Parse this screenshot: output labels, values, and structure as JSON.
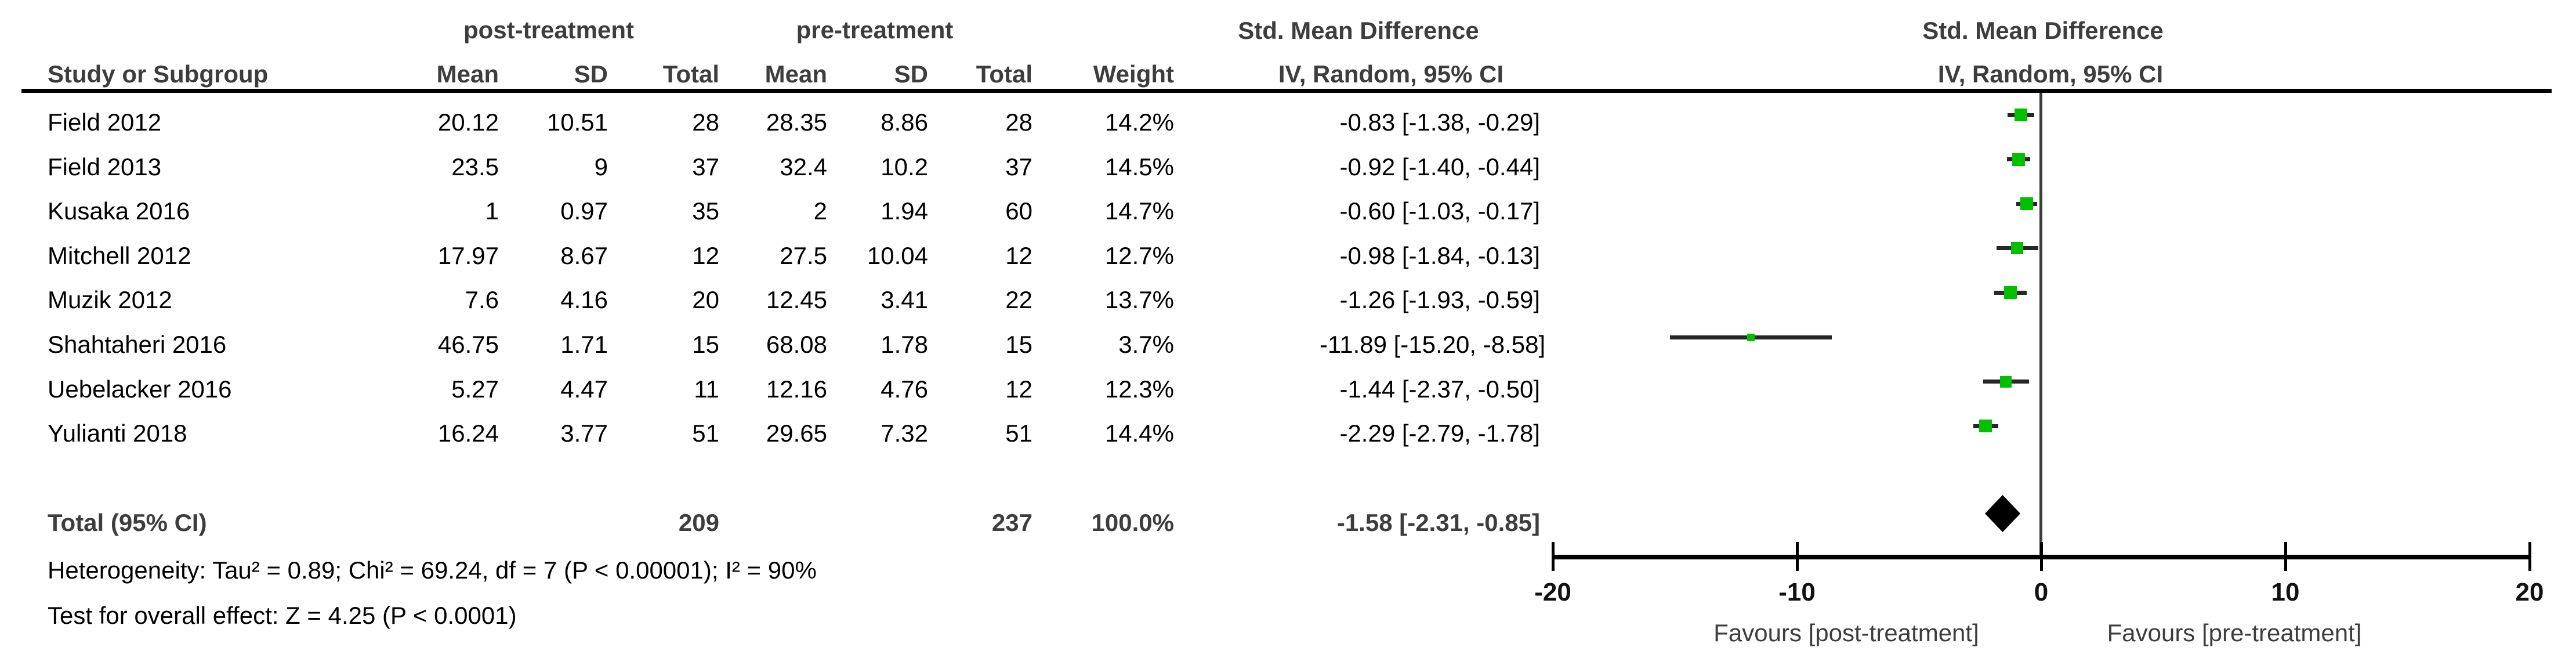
{
  "header": {
    "post": "post-treatment",
    "pre": "pre-treatment",
    "smd": "Std. Mean Difference",
    "iv": "IV, Random, 95% CI"
  },
  "columns": {
    "study": "Study or Subgroup",
    "mean": "Mean",
    "sd": "SD",
    "total": "Total",
    "weight": "Weight"
  },
  "studies": [
    {
      "name": "Field 2012",
      "post": {
        "mean": "20.12",
        "sd": "10.51",
        "total": "28"
      },
      "pre": {
        "mean": "28.35",
        "sd": "8.86",
        "total": "28"
      },
      "weight": "14.2%",
      "weight_pct": 14.2,
      "smd": -0.83,
      "ci_low": -1.38,
      "ci_high": -0.29,
      "ci_text": "-0.83 [-1.38, -0.29]"
    },
    {
      "name": "Field 2013",
      "post": {
        "mean": "23.5",
        "sd": "9",
        "total": "37"
      },
      "pre": {
        "mean": "32.4",
        "sd": "10.2",
        "total": "37"
      },
      "weight": "14.5%",
      "weight_pct": 14.5,
      "smd": -0.92,
      "ci_low": -1.4,
      "ci_high": -0.44,
      "ci_text": "-0.92 [-1.40, -0.44]"
    },
    {
      "name": "Kusaka 2016",
      "post": {
        "mean": "1",
        "sd": "0.97",
        "total": "35"
      },
      "pre": {
        "mean": "2",
        "sd": "1.94",
        "total": "60"
      },
      "weight": "14.7%",
      "weight_pct": 14.7,
      "smd": -0.6,
      "ci_low": -1.03,
      "ci_high": -0.17,
      "ci_text": "-0.60 [-1.03, -0.17]"
    },
    {
      "name": "Mitchell 2012",
      "post": {
        "mean": "17.97",
        "sd": "8.67",
        "total": "12"
      },
      "pre": {
        "mean": "27.5",
        "sd": "10.04",
        "total": "12"
      },
      "weight": "12.7%",
      "weight_pct": 12.7,
      "smd": -0.98,
      "ci_low": -1.84,
      "ci_high": -0.13,
      "ci_text": "-0.98 [-1.84, -0.13]"
    },
    {
      "name": "Muzik 2012",
      "post": {
        "mean": "7.6",
        "sd": "4.16",
        "total": "20"
      },
      "pre": {
        "mean": "12.45",
        "sd": "3.41",
        "total": "22"
      },
      "weight": "13.7%",
      "weight_pct": 13.7,
      "smd": -1.26,
      "ci_low": -1.93,
      "ci_high": -0.59,
      "ci_text": "-1.26 [-1.93, -0.59]"
    },
    {
      "name": "Shahtaheri 2016",
      "post": {
        "mean": "46.75",
        "sd": "1.71",
        "total": "15"
      },
      "pre": {
        "mean": "68.08",
        "sd": "1.78",
        "total": "15"
      },
      "weight": "3.7%",
      "weight_pct": 3.7,
      "smd": -11.89,
      "ci_low": -15.2,
      "ci_high": -8.58,
      "ci_text": "-11.89 [-15.20, -8.58]"
    },
    {
      "name": "Uebelacker 2016",
      "post": {
        "mean": "5.27",
        "sd": "4.47",
        "total": "11"
      },
      "pre": {
        "mean": "12.16",
        "sd": "4.76",
        "total": "12"
      },
      "weight": "12.3%",
      "weight_pct": 12.3,
      "smd": -1.44,
      "ci_low": -2.37,
      "ci_high": -0.5,
      "ci_text": "-1.44 [-2.37, -0.50]"
    },
    {
      "name": "Yulianti 2018",
      "post": {
        "mean": "16.24",
        "sd": "3.77",
        "total": "51"
      },
      "pre": {
        "mean": "29.65",
        "sd": "7.32",
        "total": "51"
      },
      "weight": "14.4%",
      "weight_pct": 14.4,
      "smd": -2.29,
      "ci_low": -2.79,
      "ci_high": -1.78,
      "ci_text": "-2.29 [-2.79, -1.78]"
    }
  ],
  "total": {
    "label": "Total (95% CI)",
    "post_total": "209",
    "pre_total": "237",
    "weight": "100.0%",
    "smd": -1.58,
    "ci_low": -2.31,
    "ci_high": -0.85,
    "ci_text": "-1.58 [-2.31, -0.85]"
  },
  "footer": {
    "heterogeneity": "Heterogeneity: Tau² = 0.89; Chi² = 69.24, df = 7 (P < 0.00001); I² = 90%",
    "overall_effect": "Test for overall effect: Z = 4.25 (P < 0.0001)"
  },
  "axis": {
    "ticks": [
      -20,
      -10,
      0,
      10,
      20
    ],
    "favours_left": "Favours [post-treatment]",
    "favours_right": "Favours [pre-treatment]"
  },
  "colors": {
    "square": "#00c000",
    "ci_line": "#262626",
    "diamond": "#000000",
    "zero_line": "#3c3c3c",
    "axis": "#000000",
    "header_text": "#3d3d3d",
    "body_text": "#000000"
  },
  "chart_data": {
    "type": "scatter",
    "subtype": "forest-plot",
    "title": "Std. Mean Difference — IV, Random, 95% CI",
    "categories": [
      "Field 2012",
      "Field 2013",
      "Kusaka 2016",
      "Mitchell 2012",
      "Muzik 2012",
      "Shahtaheri 2016",
      "Uebelacker 2016",
      "Yulianti 2018"
    ],
    "series": [
      {
        "name": "SMD",
        "values": [
          -0.83,
          -0.92,
          -0.6,
          -0.98,
          -1.26,
          -11.89,
          -1.44,
          -2.29
        ]
      },
      {
        "name": "CI lower",
        "values": [
          -1.38,
          -1.4,
          -1.03,
          -1.84,
          -1.93,
          -15.2,
          -2.37,
          -2.79
        ]
      },
      {
        "name": "CI upper",
        "values": [
          -0.29,
          -0.44,
          -0.17,
          -0.13,
          -0.59,
          -8.58,
          -0.5,
          -1.78
        ]
      },
      {
        "name": "Weight %",
        "values": [
          14.2,
          14.5,
          14.7,
          12.7,
          13.7,
          3.7,
          12.3,
          14.4
        ]
      }
    ],
    "overall": {
      "label": "Total (95% CI)",
      "smd": -1.58,
      "ci": [
        -2.31,
        -0.85
      ],
      "weight": 100.0
    },
    "xlim": [
      -20,
      20
    ],
    "x_ticks": [
      -20,
      -10,
      0,
      10,
      20
    ],
    "xlabel_left": "Favours [post-treatment]",
    "xlabel_right": "Favours [pre-treatment]",
    "legend": "none",
    "grid": false
  }
}
